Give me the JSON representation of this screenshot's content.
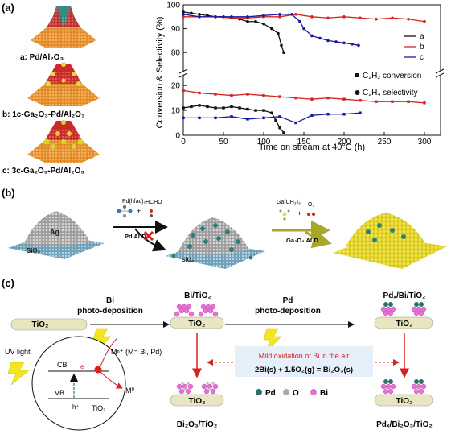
{
  "panel_a": {
    "tag": "(a)",
    "catalysts": [
      {
        "label": "a: Pd/Al₂O₃"
      },
      {
        "label": "b: 1c-Ga₂O₃-Pd/Al₂O₃"
      },
      {
        "label": "c: 3c-Ga₂O₃-Pd/Al₂O₃"
      }
    ],
    "legend": {
      "series_labels": [
        "a",
        "b",
        "c"
      ],
      "conversion_label": "C₂H₂ conversion",
      "selectivity_label": "C₂H₄ selectivity"
    }
  },
  "chart_data": {
    "type": "line",
    "xlabel": "Time on stream at 40°C (h)",
    "ylabel": "Conversion & Selectivity (%)",
    "xlim": [
      0,
      320
    ],
    "x_ticks": [
      0,
      50,
      100,
      150,
      200,
      250,
      300
    ],
    "y_ticks_upper": [
      80,
      90,
      100
    ],
    "y_ticks_lower": [
      0,
      10,
      20
    ],
    "axis_break": true,
    "series": [
      {
        "name": "a",
        "metric": "selectivity",
        "color": "#111111",
        "x": [
          0,
          10,
          20,
          30,
          40,
          50,
          60,
          70,
          80,
          90,
          100,
          110,
          118,
          122,
          125
        ],
        "y": [
          97,
          96.5,
          96,
          95.5,
          95,
          95,
          94.5,
          94,
          93,
          93,
          92,
          90,
          88,
          83,
          80
        ]
      },
      {
        "name": "b",
        "metric": "selectivity",
        "color": "#d62222",
        "x": [
          0,
          20,
          40,
          60,
          80,
          100,
          120,
          140,
          160,
          180,
          200,
          220,
          240,
          260,
          280,
          300
        ],
        "y": [
          95,
          95,
          95,
          94.5,
          94.5,
          95,
          95,
          96,
          95,
          94.5,
          95,
          94.5,
          94,
          94.5,
          94,
          93
        ]
      },
      {
        "name": "c",
        "metric": "selectivity",
        "color": "#1a1aa0",
        "x": [
          0,
          20,
          40,
          60,
          80,
          100,
          120,
          135,
          145,
          150,
          160,
          170,
          180,
          190,
          200,
          210,
          218
        ],
        "y": [
          96,
          95,
          95,
          95,
          95,
          95.5,
          96,
          96,
          93,
          90,
          87,
          86,
          85,
          84.5,
          84,
          83.5,
          83
        ]
      },
      {
        "name": "a",
        "metric": "conversion",
        "color": "#111111",
        "x": [
          0,
          10,
          20,
          30,
          40,
          50,
          60,
          70,
          80,
          90,
          100,
          110,
          115,
          120,
          125
        ],
        "y": [
          11,
          11.5,
          12,
          11.5,
          11,
          11,
          11.5,
          11,
          10.5,
          10,
          10,
          9,
          6,
          3,
          1
        ]
      },
      {
        "name": "b",
        "metric": "conversion",
        "color": "#d62222",
        "x": [
          0,
          20,
          40,
          60,
          80,
          100,
          120,
          140,
          160,
          180,
          200,
          220,
          240,
          260,
          280,
          300
        ],
        "y": [
          18,
          17,
          16.5,
          16,
          16.5,
          16,
          15.5,
          15,
          14.5,
          15,
          14.5,
          14,
          13.5,
          13.5,
          13.5,
          13
        ]
      },
      {
        "name": "c",
        "metric": "conversion",
        "color": "#1a1aa0",
        "x": [
          0,
          20,
          40,
          60,
          80,
          100,
          120,
          140,
          160,
          180,
          200,
          220
        ],
        "y": [
          7,
          7,
          7,
          7.5,
          6.5,
          7,
          7.5,
          5,
          8,
          8.5,
          8.5,
          9
        ]
      }
    ]
  },
  "panel_b": {
    "tag": "(b)",
    "reactant1": "Pd(hfac)₂",
    "reactant2": "HCHO",
    "step1": "Pd ALD",
    "reactant3": "Ga(CH₃)₃",
    "reactant4": "O₂",
    "step2": "Ga₂O₃ ALD",
    "substrate": "SiO₂",
    "particle": "Ag"
  },
  "panel_c": {
    "tag": "(c)",
    "step1_title_1": "Bi",
    "step1_title_2": "photo-deposition",
    "step2_title_1": "Pd",
    "step2_title_2": "photo-deposition",
    "tio2": "TiO₂",
    "bi_tio2": "Bi/TiO₂",
    "pdx_bi_tio2": "Pdₓ/Bi/TiO₂",
    "bi2o3_tio2": "Bi₂O₃/TiO₂",
    "pdx_bi2o3_tio2": "Pdₓ/Bi₂O₃/TiO₂",
    "mn": "Mⁿ⁺ (M= Bi, Pd)",
    "m0": "M⁰",
    "uv": "UV light",
    "cb": "CB",
    "vb": "VB",
    "electron": "e⁻",
    "hole": "h⁺",
    "mild_ox": "Mild oxidation of Bi in the air",
    "equation": "2Bi(s) + 1.5O₂(g) = Bi₂O₃(s)",
    "legend_pd": "Pd",
    "legend_o": "O",
    "legend_bi": "Bi"
  }
}
